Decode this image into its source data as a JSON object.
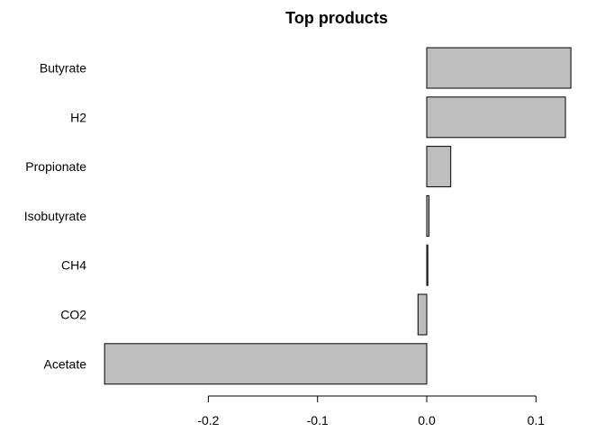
{
  "chart_data": {
    "type": "bar",
    "orientation": "horizontal",
    "title": "Top products",
    "xlabel": "",
    "ylabel": "",
    "categories": [
      "Butyrate",
      "H2",
      "Propionate",
      "Isobutyrate",
      "CH4",
      "CO2",
      "Acetate"
    ],
    "values": [
      0.132,
      0.127,
      0.022,
      0.002,
      0.001,
      -0.008,
      -0.295
    ],
    "xlim": [
      -0.3,
      0.135
    ],
    "xticks": [
      -0.2,
      -0.1,
      0.0,
      0.1
    ],
    "xtick_labels": [
      "-0.2",
      "-0.1",
      "0.0",
      "0.1"
    ],
    "bar_color": "#bebebe",
    "bar_border_color": "#000000",
    "grid": false,
    "legend": "none"
  }
}
